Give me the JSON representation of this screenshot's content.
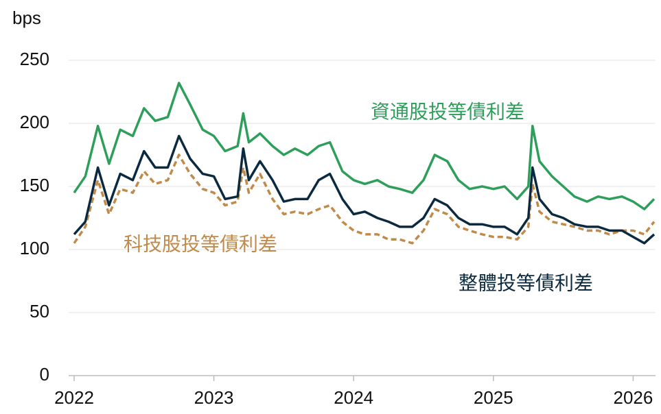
{
  "chart_data": {
    "type": "line",
    "y_label": "bps",
    "x": [
      2022.0,
      2022.08,
      2022.17,
      2022.25,
      2022.33,
      2022.42,
      2022.5,
      2022.58,
      2022.67,
      2022.75,
      2022.83,
      2022.92,
      2023.0,
      2023.08,
      2023.17,
      2023.21,
      2023.25,
      2023.33,
      2023.42,
      2023.5,
      2023.58,
      2023.67,
      2023.75,
      2023.83,
      2023.92,
      2024.0,
      2024.08,
      2024.17,
      2024.25,
      2024.33,
      2024.42,
      2024.5,
      2024.58,
      2024.67,
      2024.75,
      2024.83,
      2024.92,
      2025.0,
      2025.08,
      2025.17,
      2025.25,
      2025.28,
      2025.33,
      2025.42,
      2025.5,
      2025.58,
      2025.67,
      2025.75,
      2025.83,
      2025.92,
      2026.0,
      2026.08,
      2026.15
    ],
    "series": [
      {
        "name": "資通股投等債利差",
        "color": "#2e9e5b",
        "dashed": false,
        "values": [
          145,
          158,
          198,
          168,
          195,
          190,
          212,
          202,
          205,
          232,
          215,
          195,
          190,
          178,
          182,
          208,
          185,
          192,
          182,
          175,
          180,
          175,
          182,
          185,
          162,
          155,
          152,
          155,
          150,
          148,
          145,
          155,
          175,
          170,
          155,
          148,
          150,
          148,
          150,
          140,
          150,
          198,
          170,
          158,
          150,
          142,
          138,
          142,
          140,
          142,
          138,
          132,
          140
        ]
      },
      {
        "name": "科技股投等債利差",
        "color": "#c08a4a",
        "dashed": true,
        "values": [
          105,
          118,
          155,
          128,
          148,
          145,
          162,
          152,
          155,
          175,
          160,
          148,
          145,
          135,
          138,
          165,
          145,
          160,
          140,
          128,
          130,
          128,
          132,
          135,
          122,
          115,
          112,
          112,
          108,
          108,
          105,
          115,
          132,
          128,
          118,
          115,
          112,
          110,
          110,
          108,
          118,
          152,
          130,
          122,
          120,
          118,
          115,
          115,
          112,
          115,
          115,
          112,
          122
        ]
      },
      {
        "name": "整體投等債利差",
        "color": "#0b2a40",
        "dashed": false,
        "values": [
          112,
          122,
          165,
          135,
          160,
          155,
          178,
          165,
          165,
          190,
          172,
          160,
          158,
          140,
          142,
          180,
          155,
          170,
          155,
          138,
          140,
          140,
          155,
          160,
          140,
          128,
          130,
          125,
          122,
          118,
          118,
          125,
          140,
          135,
          125,
          120,
          120,
          118,
          118,
          112,
          125,
          165,
          140,
          128,
          125,
          120,
          118,
          118,
          115,
          115,
          110,
          105,
          112
        ]
      }
    ],
    "xlim": [
      2022,
      2026.16
    ],
    "xticks": [
      2022,
      2023,
      2024,
      2025,
      2026
    ],
    "ylim": [
      0,
      250
    ],
    "yticks": [
      0,
      50,
      100,
      150,
      200,
      250
    ],
    "grid": true
  }
}
